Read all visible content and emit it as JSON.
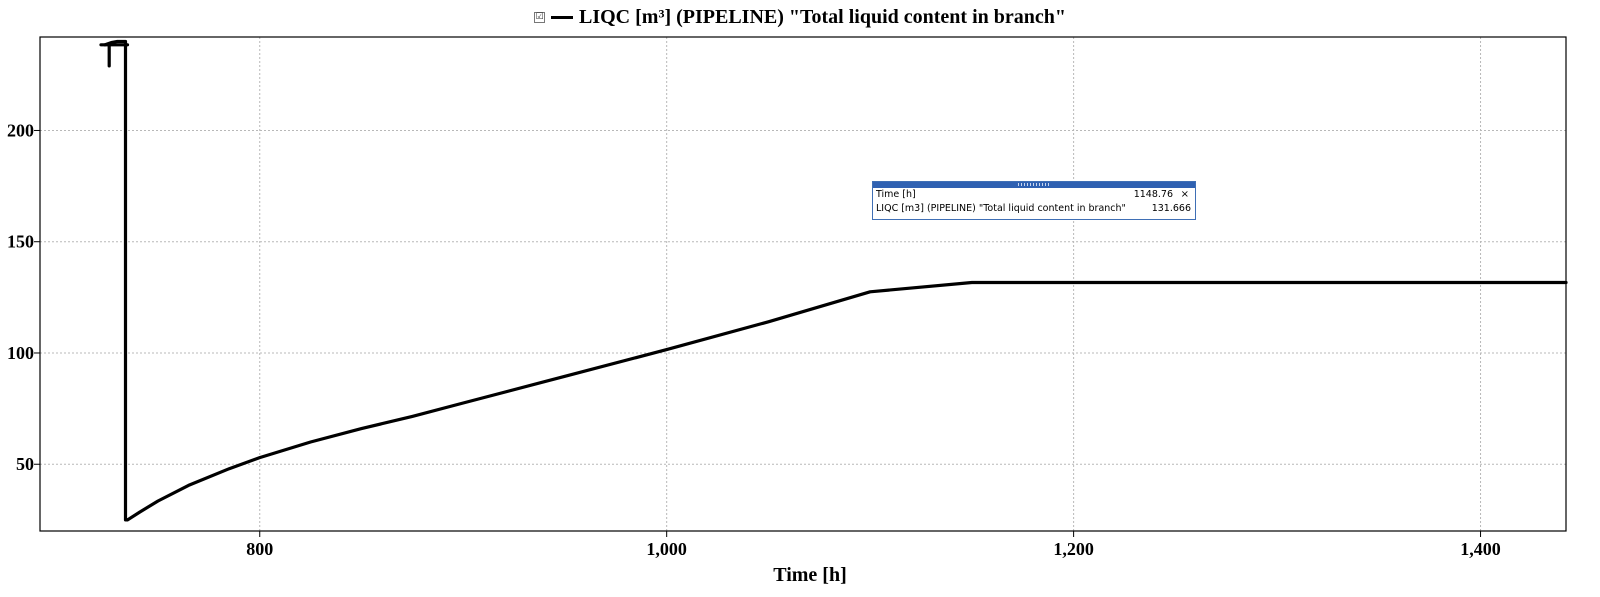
{
  "legend": {
    "checkbox_symbol": "☑",
    "label": "LIQC [m³] (PIPELINE) \"Total liquid content in branch\""
  },
  "tooltip": {
    "rows": [
      {
        "label": "Time [h]",
        "value": "1148.76"
      },
      {
        "label": "LIQC [m3] (PIPELINE) \"Total liquid content in branch\"",
        "value": "131.666"
      }
    ],
    "close_symbol": "×"
  },
  "chart_data": {
    "type": "line",
    "title": "",
    "xlabel": "Time [h]",
    "ylabel": "",
    "xlim": [
      692,
      1442
    ],
    "ylim": [
      20,
      242
    ],
    "x_ticks": [
      800,
      1000,
      1200,
      1400
    ],
    "x_tick_labels": [
      "800",
      "1,000",
      "1,200",
      "1,400"
    ],
    "y_ticks": [
      50,
      100,
      150,
      200
    ],
    "y_tick_labels": [
      "50",
      "100",
      "150",
      "200"
    ],
    "grid": true,
    "legend_position": "top-center",
    "line_color": "#000000",
    "series": [
      {
        "name": "LIQC [m³] (PIPELINE) \"Total liquid content in branch\"",
        "x": [
          724,
          727,
          730,
          734,
          734,
          735,
          741,
          750,
          765,
          785,
          800,
          825,
          850,
          875,
          900,
          950,
          1000,
          1050,
          1100,
          1150,
          1200,
          1300,
          1400,
          1442
        ],
        "y": [
          238.5,
          239.5,
          240,
          240,
          25,
          25,
          28.5,
          33.5,
          40.5,
          48,
          53,
          60,
          66,
          71.5,
          77.5,
          89.5,
          101.5,
          114,
          127.5,
          131.666,
          131.666,
          131.666,
          131.666,
          131.666
        ]
      }
    ],
    "annotation_marks": [
      {
        "x": [
          722,
          735
        ],
        "y": [
          238.5,
          238.5
        ]
      },
      {
        "x": [
          726,
          726
        ],
        "y": [
          238.5,
          229
        ]
      }
    ]
  }
}
